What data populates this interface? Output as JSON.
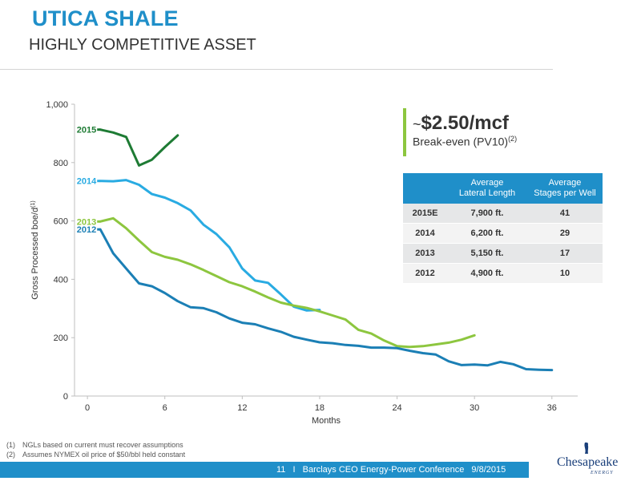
{
  "header": {
    "title": "UTICA SHALE",
    "subtitle": "HIGHLY COMPETITIVE ASSET"
  },
  "callout": {
    "tilde": "~",
    "value": "$2.50/mcf",
    "label": "Break-even (PV10)",
    "label_sup": "(2)"
  },
  "table": {
    "headers": [
      "",
      "Average\nLateral Length",
      "Average\nStages per Well"
    ],
    "rows": [
      [
        "2015E",
        "7,900 ft.",
        "41"
      ],
      [
        "2014",
        "6,200 ft.",
        "29"
      ],
      [
        "2013",
        "5,150 ft.",
        "17"
      ],
      [
        "2012",
        "4,900 ft.",
        "10"
      ]
    ]
  },
  "chart_data": {
    "type": "line",
    "xlabel": "Months",
    "ylabel": "Gross Processed boe/d",
    "ylabel_sup": "(1)",
    "xlim": [
      -1,
      38
    ],
    "ylim": [
      0,
      1000
    ],
    "xticks": [
      0,
      6,
      12,
      18,
      24,
      30,
      36
    ],
    "yticks": [
      0,
      200,
      400,
      600,
      800,
      1000
    ],
    "ytick_labels": [
      "0",
      "200",
      "400",
      "600",
      "800",
      "1,000"
    ],
    "grid": false,
    "series": [
      {
        "name": "2015",
        "color": "#1e7b34",
        "x": [
          1,
          2,
          3,
          4,
          5,
          6,
          7
        ],
        "y": [
          913,
          903,
          888,
          790,
          810,
          853,
          893
        ]
      },
      {
        "name": "2014",
        "color": "#29abe2",
        "x": [
          1,
          2,
          3,
          4,
          5,
          6,
          7,
          8,
          9,
          10,
          11,
          12,
          13,
          14,
          15,
          16,
          17,
          18
        ],
        "y": [
          737,
          736,
          740,
          724,
          692,
          680,
          661,
          636,
          587,
          555,
          510,
          437,
          396,
          388,
          348,
          306,
          293,
          295
        ]
      },
      {
        "name": "2013",
        "color": "#8dc63f",
        "x": [
          1,
          2,
          3,
          4,
          5,
          6,
          7,
          8,
          9,
          10,
          11,
          12,
          13,
          14,
          15,
          16,
          17,
          18,
          19,
          20,
          21,
          22,
          23,
          24,
          25,
          26,
          27,
          28,
          29,
          30
        ],
        "y": [
          598,
          609,
          575,
          533,
          493,
          477,
          467,
          451,
          432,
          411,
          390,
          376,
          358,
          338,
          320,
          310,
          302,
          290,
          276,
          262,
          227,
          214,
          190,
          171,
          168,
          171,
          177,
          183,
          193,
          208
        ]
      },
      {
        "name": "2012",
        "color": "#1b7fb5",
        "x": [
          1,
          2,
          3,
          4,
          5,
          6,
          7,
          8,
          9,
          10,
          11,
          12,
          13,
          14,
          15,
          16,
          17,
          18,
          19,
          20,
          21,
          22,
          23,
          24,
          25,
          26,
          27,
          28,
          29,
          30,
          31,
          32,
          33,
          34,
          35,
          36
        ],
        "y": [
          571,
          489,
          437,
          386,
          376,
          353,
          325,
          304,
          301,
          287,
          266,
          251,
          246,
          232,
          220,
          203,
          193,
          184,
          181,
          175,
          172,
          166,
          166,
          164,
          155,
          147,
          142,
          119,
          106,
          108,
          105,
          117,
          109,
          92,
          90,
          89
        ]
      }
    ]
  },
  "footnotes": [
    {
      "num": "(1)",
      "text": "NGLs based on current must recover assumptions"
    },
    {
      "num": "(2)",
      "text": "Assumes NYMEX oil price of $50/bbl held constant"
    }
  ],
  "footer": {
    "page": "11",
    "sep": "I",
    "event": "Barclays CEO Energy-Power Conference",
    "date": "9/8/2015"
  },
  "logo": {
    "name": "Chesapeake",
    "sub": "ENERGY"
  }
}
